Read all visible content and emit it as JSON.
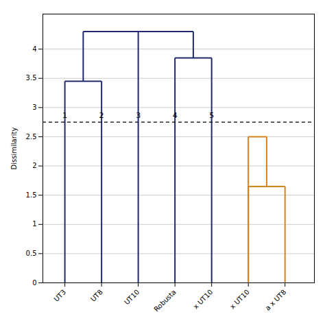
{
  "chart_data": {
    "type": "dendrogram",
    "ylabel": "Dissimilarity",
    "xlim": [
      0.4,
      7.8
    ],
    "xticks": [
      {
        "value": 1,
        "label": "UT3"
      },
      {
        "value": 2,
        "label": "UT8"
      },
      {
        "value": 3,
        "label": "UT10"
      },
      {
        "value": 4,
        "label": "Robusta"
      },
      {
        "value": 5,
        "label": "x UT10"
      },
      {
        "value": 6,
        "label": "x UT10"
      },
      {
        "value": 7,
        "label": "a x UT8"
      }
    ],
    "ylim": [
      0,
      4.6
    ],
    "yticks": [
      0,
      0.5,
      1,
      1.5,
      2,
      2.5,
      3,
      3.5,
      4
    ],
    "grid": true,
    "series": [
      {
        "color": "#1f2a6e",
        "segments": [
          {
            "x1": 1,
            "x2": 2,
            "yb1": 0,
            "yb2": 0,
            "ytop": 3.45
          },
          {
            "x1": 1.5,
            "x2": 3,
            "yb1": 3.45,
            "yb2": 0,
            "ytop": 4.3
          },
          {
            "x1": 4,
            "x2": 5,
            "yb1": 0,
            "yb2": 0,
            "ytop": 3.85
          },
          {
            "x1": 2.25,
            "x2": 4.5,
            "yb1": 4.3,
            "yb2": 3.85,
            "ytop": 4.3
          }
        ]
      },
      {
        "color": "#d4821a",
        "segments": [
          {
            "x1": 6,
            "x2": 7,
            "yb1": 0,
            "yb2": 0,
            "ytop": 1.65
          },
          {
            "x1": 6,
            "x2": 6.5,
            "yb1": 0,
            "yb2": 1.65,
            "ytop": 2.5
          }
        ]
      }
    ],
    "reference_line": {
      "y": 2.75,
      "line_style": "dashed",
      "color": "#000000"
    },
    "annotations": [
      {
        "text": "1",
        "x": 1,
        "y": 2.82
      },
      {
        "text": "2",
        "x": 2,
        "y": 2.82
      },
      {
        "text": "3",
        "x": 3,
        "y": 2.82
      },
      {
        "text": "4",
        "x": 4,
        "y": 2.82
      },
      {
        "text": "5",
        "x": 5,
        "y": 2.82
      }
    ]
  }
}
